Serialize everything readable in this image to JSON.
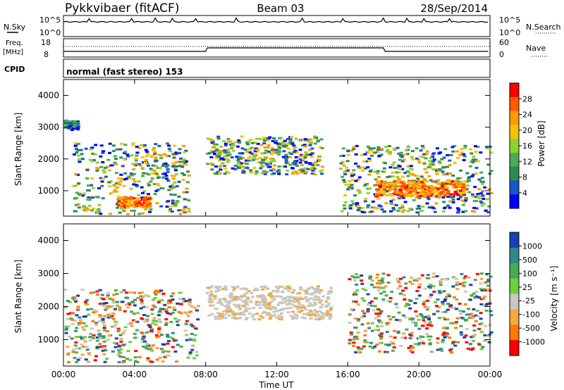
{
  "header": {
    "title": "Pykkvibaer (fitACF)",
    "beam": "Beam 03",
    "date": "28/Sep/2014"
  },
  "summary": {
    "nsky_label": "N.Sky",
    "nsky_ticks": [
      "10^5",
      "10^0"
    ],
    "nsearch_label": "N.Search",
    "nsearch_ticks": [
      "10^5",
      "10^0"
    ],
    "freq_label": "Freq.",
    "freq_unit": "[MHz]",
    "freq_ticks": [
      "18",
      "8"
    ],
    "nave_label": "Nave",
    "nave_ticks": [
      "60",
      "0"
    ],
    "cpid_label": "CPID",
    "cpid_value": "normal (fast stereo) 153"
  },
  "chart_data": [
    {
      "type": "heatmap",
      "panel": "power",
      "ylabel": "Slant Range [km]",
      "y_ticks": [
        "4000",
        "3000",
        "2000",
        "1000"
      ],
      "ylim": [
        200,
        4500
      ],
      "colorbar_label": "Power [dB]",
      "colorbar_ticks": [
        "28",
        "24",
        "20",
        "16",
        "12",
        "8",
        "4"
      ],
      "colorbar_colors": [
        "#ff0000",
        "#ff5a00",
        "#ff9a00",
        "#f5c400",
        "#90d32f",
        "#4aaa55",
        "#2a8a55",
        "#1a55c8",
        "#0000ff"
      ],
      "features": [
        {
          "t_start": 0.0,
          "t_end": 0.8,
          "range_min": 2900,
          "range_max": 3200,
          "level": "weak"
        },
        {
          "t_start": 0.5,
          "t_end": 7.0,
          "range_min": 250,
          "range_max": 2500,
          "level": "moderate"
        },
        {
          "t_start": 3.0,
          "t_end": 4.8,
          "range_min": 450,
          "range_max": 800,
          "level": "strong"
        },
        {
          "t_start": 8.0,
          "t_end": 14.5,
          "range_min": 1500,
          "range_max": 2700,
          "level": "moderate"
        },
        {
          "t_start": 15.5,
          "t_end": 24.0,
          "range_min": 300,
          "range_max": 2400,
          "level": "moderate"
        },
        {
          "t_start": 17.5,
          "t_end": 22.5,
          "range_min": 800,
          "range_max": 1300,
          "level": "strong"
        }
      ]
    },
    {
      "type": "heatmap",
      "panel": "velocity",
      "ylabel": "Slant Range [km]",
      "y_ticks": [
        "4000",
        "3000",
        "2000",
        "1000"
      ],
      "ylim": [
        200,
        4500
      ],
      "xlabel": "Time UT",
      "x_ticks": [
        "00:00",
        "04:00",
        "08:00",
        "12:00",
        "16:00",
        "20:00",
        "00:00"
      ],
      "xlim": [
        0,
        24
      ],
      "colorbar_label": "Velocity [m s⁻¹]",
      "colorbar_ticks": [
        "1000",
        "500",
        "100",
        "25",
        "-25",
        "-100",
        "-500",
        "-1000"
      ],
      "colorbar_colors": [
        "#1a3fb0",
        "#2e8a88",
        "#4aaa55",
        "#6ad040",
        "#c8c8c0",
        "#f5a840",
        "#ff7a00",
        "#ff0000"
      ],
      "features": [
        {
          "t_start": 0.0,
          "t_end": 7.5,
          "range_min": 300,
          "range_max": 2500,
          "velocity": "mixed"
        },
        {
          "t_start": 8.0,
          "t_end": 15.0,
          "range_min": 1600,
          "range_max": 2600,
          "velocity": "near-zero"
        },
        {
          "t_start": 16.0,
          "t_end": 24.0,
          "range_min": 600,
          "range_max": 3000,
          "velocity": "mixed"
        }
      ]
    }
  ]
}
